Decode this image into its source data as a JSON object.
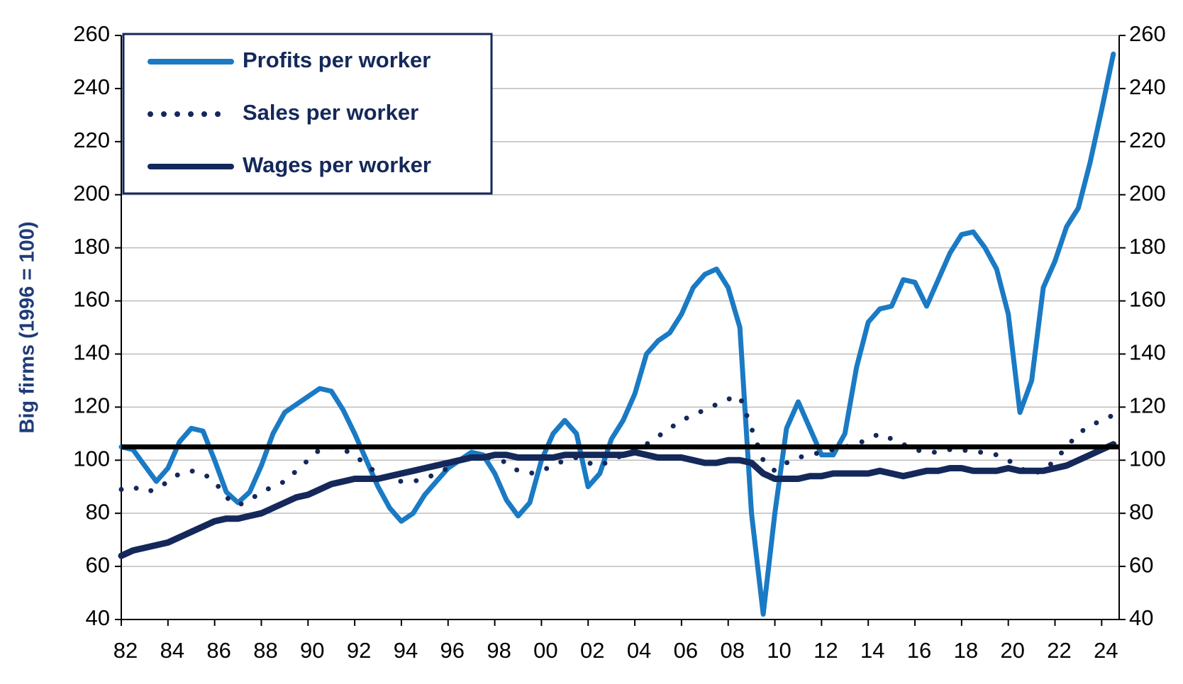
{
  "chart_data": {
    "type": "line",
    "y_label": "Big firms (1996 = 100)",
    "x": [
      1982,
      1982.5,
      1983,
      1983.5,
      1984,
      1984.5,
      1985,
      1985.5,
      1986,
      1986.5,
      1987,
      1987.5,
      1988,
      1988.5,
      1989,
      1989.5,
      1990,
      1990.5,
      1991,
      1991.5,
      1992,
      1992.5,
      1993,
      1993.5,
      1994,
      1994.5,
      1995,
      1995.5,
      1996,
      1996.5,
      1997,
      1997.5,
      1998,
      1998.5,
      1999,
      1999.5,
      2000,
      2000.5,
      2001,
      2001.5,
      2002,
      2002.5,
      2003,
      2003.5,
      2004,
      2004.5,
      2005,
      2005.5,
      2006,
      2006.5,
      2007,
      2007.5,
      2008,
      2008.5,
      2009,
      2009.5,
      2010,
      2010.5,
      2011,
      2011.5,
      2012,
      2012.5,
      2013,
      2013.5,
      2014,
      2014.5,
      2015,
      2015.5,
      2016,
      2016.5,
      2017,
      2017.5,
      2018,
      2018.5,
      2019,
      2019.5,
      2020,
      2020.5,
      2021,
      2021.5,
      2022,
      2022.5,
      2023,
      2023.5,
      2024,
      2024.5
    ],
    "series": [
      {
        "name": "Profits per worker",
        "color": "#1a7ac4",
        "style": "solid",
        "values": [
          105,
          104,
          98,
          92,
          97,
          107,
          112,
          111,
          100,
          88,
          84,
          88,
          98,
          110,
          118,
          121,
          124,
          127,
          126,
          119,
          110,
          100,
          90,
          82,
          77,
          80,
          87,
          92,
          97,
          100,
          103,
          102,
          95,
          85,
          79,
          84,
          100,
          110,
          115,
          110,
          90,
          95,
          108,
          115,
          125,
          140,
          145,
          148,
          155,
          165,
          170,
          172,
          165,
          150,
          80,
          42,
          80,
          112,
          122,
          112,
          102,
          102,
          110,
          135,
          152,
          157,
          158,
          168,
          167,
          158,
          168,
          178,
          185,
          186,
          180,
          172,
          155,
          118,
          130,
          165,
          175,
          188,
          195,
          212,
          232,
          253
        ]
      },
      {
        "name": "Sales per worker",
        "color": "#14285a",
        "style": "dotted",
        "values": [
          89,
          90,
          88,
          89,
          92,
          95,
          96,
          95,
          92,
          86,
          83,
          85,
          88,
          90,
          92,
          96,
          100,
          104,
          105,
          104,
          102,
          98,
          95,
          93,
          92,
          92,
          93,
          95,
          97,
          100,
          101,
          101,
          101,
          99,
          96,
          95,
          96,
          98,
          100,
          101,
          99,
          98,
          100,
          102,
          104,
          106,
          109,
          112,
          115,
          117,
          119,
          121,
          123,
          124,
          112,
          100,
          96,
          99,
          101,
          102,
          103,
          104,
          105,
          106,
          108,
          110,
          108,
          106,
          104,
          103,
          103,
          104,
          104,
          103,
          103,
          102,
          100,
          97,
          95,
          96,
          100,
          105,
          110,
          113,
          115,
          117
        ]
      },
      {
        "name": "Wages per worker",
        "color": "#14285a",
        "style": "solid",
        "values": [
          64,
          66,
          67,
          68,
          69,
          71,
          73,
          75,
          77,
          78,
          78,
          79,
          80,
          82,
          84,
          86,
          87,
          89,
          91,
          92,
          93,
          93,
          93,
          94,
          95,
          96,
          97,
          98,
          99,
          100,
          101,
          101,
          102,
          102,
          101,
          101,
          101,
          101,
          102,
          102,
          102,
          102,
          102,
          102,
          103,
          102,
          101,
          101,
          101,
          100,
          99,
          99,
          100,
          100,
          99,
          95,
          93,
          93,
          93,
          94,
          94,
          95,
          95,
          95,
          95,
          96,
          95,
          94,
          95,
          96,
          96,
          97,
          97,
          96,
          96,
          96,
          97,
          96,
          96,
          96,
          97,
          98,
          100,
          102,
          104,
          106
        ]
      }
    ],
    "reference_line": 105,
    "xlim": [
      1982,
      2024.75
    ],
    "xticks": [
      {
        "value": 1982,
        "label": "82"
      },
      {
        "value": 1984,
        "label": "84"
      },
      {
        "value": 1986,
        "label": "86"
      },
      {
        "value": 1988,
        "label": "88"
      },
      {
        "value": 1990,
        "label": "90"
      },
      {
        "value": 1992,
        "label": "92"
      },
      {
        "value": 1994,
        "label": "94"
      },
      {
        "value": 1996,
        "label": "96"
      },
      {
        "value": 1998,
        "label": "98"
      },
      {
        "value": 2000,
        "label": "00"
      },
      {
        "value": 2002,
        "label": "02"
      },
      {
        "value": 2004,
        "label": "04"
      },
      {
        "value": 2006,
        "label": "06"
      },
      {
        "value": 2008,
        "label": "08"
      },
      {
        "value": 2010,
        "label": "10"
      },
      {
        "value": 2012,
        "label": "12"
      },
      {
        "value": 2014,
        "label": "14"
      },
      {
        "value": 2016,
        "label": "16"
      },
      {
        "value": 2018,
        "label": "18"
      },
      {
        "value": 2020,
        "label": "20"
      },
      {
        "value": 2022,
        "label": "22"
      },
      {
        "value": 2024,
        "label": "24"
      }
    ],
    "ylim": [
      40,
      260
    ],
    "yticks": [
      40,
      60,
      80,
      100,
      120,
      140,
      160,
      180,
      200,
      220,
      240,
      260
    ],
    "y2lim": [
      40,
      260
    ],
    "y2ticks": [
      40,
      60,
      80,
      100,
      120,
      140,
      160,
      180,
      200,
      220,
      240,
      260
    ],
    "grid": true
  }
}
